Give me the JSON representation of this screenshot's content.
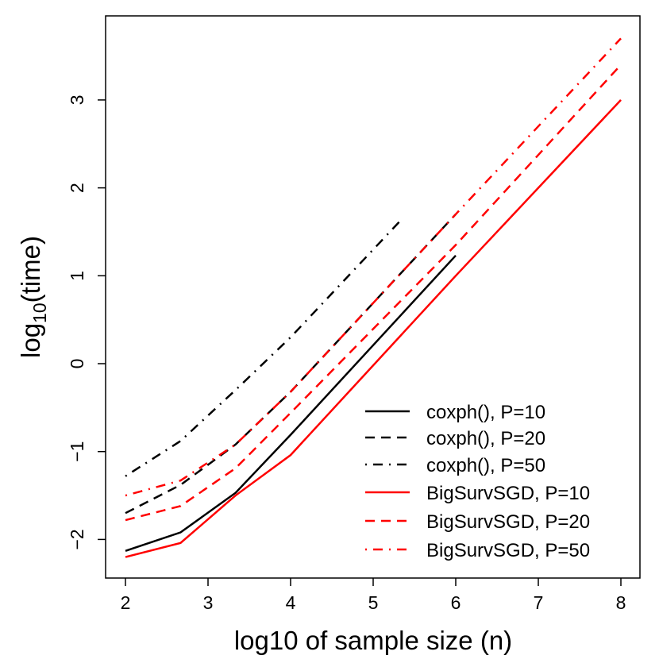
{
  "chart_data": {
    "type": "line",
    "title": "",
    "xlabel": "log10 of sample size (n)",
    "ylabel_base": "log",
    "ylabel_sub": "10",
    "ylabel_rest": "(time)",
    "xlim": [
      1.75,
      8.25
    ],
    "ylim": [
      -2.45,
      3.95
    ],
    "xticks": [
      2,
      3,
      4,
      5,
      6,
      7,
      8
    ],
    "yticks": [
      -2,
      -1,
      0,
      1,
      2,
      3
    ],
    "ytick_labels": [
      "−2",
      "−1",
      "0",
      "1",
      "2",
      "3"
    ],
    "grid": false,
    "legend_position": "bottom-right",
    "series": [
      {
        "name": "coxph(), P=10",
        "color": "#000000",
        "dash": "solid",
        "x": [
          2,
          2.667,
          3.333,
          4,
          6
        ],
        "y": [
          -2.13,
          -1.92,
          -1.47,
          -0.81,
          1.23
        ]
      },
      {
        "name": "coxph(), P=20",
        "color": "#000000",
        "dash": "dashed",
        "x": [
          2,
          2.667,
          3.333,
          4,
          6
        ],
        "y": [
          -1.7,
          -1.38,
          -0.92,
          -0.32,
          1.7
        ]
      },
      {
        "name": "coxph(), P=50",
        "color": "#000000",
        "dash": "dotdash",
        "x": [
          2,
          2.667,
          3.333,
          4,
          5.333
        ],
        "y": [
          -1.28,
          -0.88,
          -0.3,
          0.3,
          1.63
        ]
      },
      {
        "name": "BigSurvSGD, P=10",
        "color": "#ff0000",
        "dash": "solid",
        "x": [
          2,
          2.667,
          3.333,
          4,
          6,
          8
        ],
        "y": [
          -2.2,
          -2.04,
          -1.5,
          -1.04,
          1.0,
          3.0
        ]
      },
      {
        "name": "BigSurvSGD, P=20",
        "color": "#ff0000",
        "dash": "dashed",
        "x": [
          2,
          2.667,
          3.333,
          4,
          6,
          8
        ],
        "y": [
          -1.78,
          -1.62,
          -1.19,
          -0.56,
          1.35,
          3.4
        ]
      },
      {
        "name": "BigSurvSGD, P=50",
        "color": "#ff0000",
        "dash": "dotdash",
        "x": [
          2,
          2.667,
          3.333,
          4,
          6,
          8
        ],
        "y": [
          -1.5,
          -1.33,
          -0.92,
          -0.32,
          1.7,
          3.7
        ]
      }
    ]
  }
}
